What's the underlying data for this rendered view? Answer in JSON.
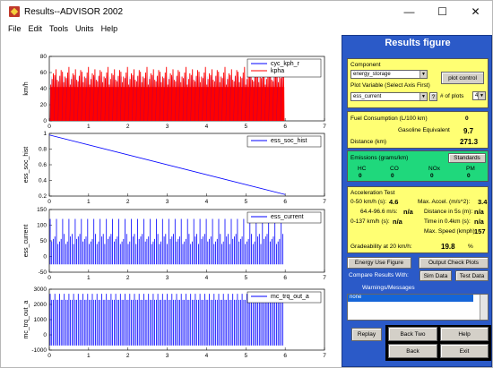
{
  "window": {
    "title": "Results--ADVISOR 2002",
    "min": "—",
    "max": "☐",
    "close": "✕"
  },
  "menu": [
    "File",
    "Edit",
    "Tools",
    "Units",
    "Help"
  ],
  "panel": {
    "title": "Results figure",
    "component_label": "Component",
    "component_value": "energy_storage",
    "plot_control": "plot control",
    "plot_var_label": "Plot Variable (Select Axis First)",
    "plot_var_value": "ess_current",
    "help_q": "?",
    "num_plots_label": "# of plots",
    "num_plots_value": "4",
    "fuel_label": "Fuel Consumption (L/100 km)",
    "fuel_value": "0",
    "gasoline_label": "Gasoline Equivalent",
    "gasoline_value": "9.7",
    "distance_label": "Distance (km)",
    "distance_value": "271.3",
    "emissions_label": "Emissions (grams/km)",
    "standards": "Standards",
    "em_headers": [
      "HC",
      "CO",
      "NOx",
      "PM"
    ],
    "em_values": [
      "0",
      "0",
      "0",
      "0"
    ],
    "accel_title": "Acceleration Test",
    "a1_label": "0-50 km/h (s):",
    "a1_value": "4.6",
    "a2_label": "64.4-96.6 m/s:",
    "a2_value": "n/a",
    "a3_label": "0-137 km/h (s):",
    "a3_value": "n/a",
    "ma_label": "Max. Accel. (m/s^2):",
    "ma_value": "3.4",
    "d5_label": "Distance in 5s (m):",
    "d5_value": "n/a",
    "t04_label": "Time in 0.4km (s):",
    "t04_value": "n/a",
    "ms_label": "Max. Speed (kmph):",
    "ms_value": "157",
    "grade_label": "Gradeability at 20 km/h:",
    "grade_value": "19.8",
    "grade_unit": "%",
    "energy_use": "Energy Use Figure",
    "output_check": "Output Check Plots",
    "compare_label": "Compare Results With:",
    "sim_data": "Sim Data",
    "test_data": "Test Data",
    "warnings_label": "Warnings/Messages",
    "warnings_item": "none",
    "replay": "Replay",
    "back_two": "Back Two",
    "help": "Help",
    "back": "Back",
    "exit": "Exit"
  },
  "chart_data": [
    {
      "type": "line",
      "legend": [
        "cyc_kph_r",
        "kpha"
      ],
      "ylabel": "km/h",
      "ylim": [
        0,
        80
      ],
      "yticks": [
        "80",
        "60",
        "40",
        "20",
        "0"
      ],
      "xlim": [
        0,
        7
      ],
      "xticks": [
        "0",
        "1",
        "2",
        "3",
        "4",
        "5",
        "6",
        "7"
      ],
      "colors": [
        "#0000ff",
        "#ff0000"
      ],
      "pattern": "drive-cycle",
      "data_end": 6
    },
    {
      "type": "line",
      "legend": [
        "ess_soc_hist"
      ],
      "ylabel": "ess_soc_hist",
      "ylim": [
        0.2,
        1
      ],
      "yticks": [
        "1",
        "0.8",
        "0.6",
        "0.4",
        "0.2"
      ],
      "xlim": [
        0,
        7
      ],
      "xticks": [
        "0",
        "1",
        "2",
        "3",
        "4",
        "5",
        "6",
        "7"
      ],
      "colors": [
        "#0000ff"
      ],
      "x": [
        0,
        6
      ],
      "y": [
        0.98,
        0.22
      ]
    },
    {
      "type": "line",
      "legend": [
        "ess_current"
      ],
      "ylabel": "ess_current",
      "ylim": [
        -50,
        150
      ],
      "yticks": [
        "150",
        "100",
        "50",
        "0",
        "-50"
      ],
      "xlim": [
        0,
        7
      ],
      "xticks": [
        "0",
        "1",
        "2",
        "3",
        "4",
        "5",
        "6",
        "7"
      ],
      "colors": [
        "#0000ff"
      ],
      "pattern": "current",
      "data_end": 6
    },
    {
      "type": "line",
      "legend": [
        "mc_trq_out_a"
      ],
      "ylabel": "mc_trq_out_a",
      "ylim": [
        -1000,
        3000
      ],
      "yticks": [
        "3000",
        "2000",
        "1000",
        "0",
        "-1000"
      ],
      "xlim": [
        0,
        7
      ],
      "xticks": [
        "0",
        "1",
        "2",
        "3",
        "4",
        "5",
        "6",
        "7"
      ],
      "colors": [
        "#0000ff"
      ],
      "pattern": "torque",
      "data_end": 6
    }
  ]
}
